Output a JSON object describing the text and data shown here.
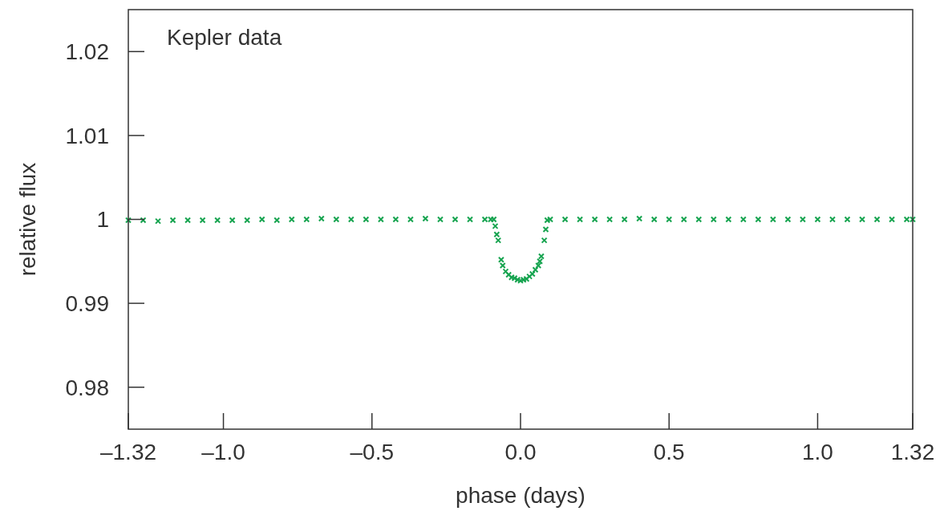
{
  "chart_data": {
    "type": "scatter",
    "xlabel": "phase (days)",
    "ylabel": "relative flux",
    "annotations": [
      "Kepler data"
    ],
    "xlim": [
      -1.32,
      1.32
    ],
    "ylim": [
      0.975,
      1.025
    ],
    "xticks": [
      {
        "value": -1.32,
        "label": "–1.32"
      },
      {
        "value": -1.0,
        "label": "–1.0"
      },
      {
        "value": -0.5,
        "label": "–0.5"
      },
      {
        "value": 0,
        "label": "0.0"
      },
      {
        "value": 0.5,
        "label": "0.5"
      },
      {
        "value": 1.0,
        "label": "1.0"
      },
      {
        "value": 1.32,
        "label": "1.32"
      }
    ],
    "yticks": [
      0.98,
      0.99,
      1,
      1.01,
      1.02
    ],
    "grid": false,
    "marker": "cross",
    "series": [
      {
        "color": "#17a450",
        "x": [
          -1.32,
          -1.27,
          -1.22,
          -1.17,
          -1.12,
          -1.07,
          -1.02,
          -0.97,
          -0.92,
          -0.87,
          -0.82,
          -0.77,
          -0.72,
          -0.67,
          -0.62,
          -0.57,
          -0.52,
          -0.47,
          -0.42,
          -0.37,
          -0.32,
          -0.27,
          -0.22,
          -0.17,
          -0.12,
          -0.1,
          -0.09,
          -0.085,
          -0.08,
          -0.075,
          -0.065,
          -0.06,
          -0.05,
          -0.04,
          -0.03,
          -0.02,
          -0.01,
          0,
          0.01,
          0.02,
          0.03,
          0.04,
          0.05,
          0.06,
          0.065,
          0.07,
          0.08,
          0.085,
          0.09,
          0.1,
          0.15,
          0.2,
          0.25,
          0.3,
          0.35,
          0.4,
          0.45,
          0.5,
          0.55,
          0.6,
          0.65,
          0.7,
          0.75,
          0.8,
          0.85,
          0.9,
          0.95,
          1.0,
          1.05,
          1.1,
          1.15,
          1.2,
          1.25,
          1.3,
          1.32
        ],
        "values": [
          0.9999,
          0.9999,
          0.9998,
          0.9999,
          0.9999,
          0.9999,
          0.9999,
          0.9999,
          0.9999,
          1.0,
          0.9999,
          1.0,
          1.0,
          1.0001,
          1.0,
          1.0,
          1.0,
          1.0,
          1.0,
          1.0,
          1.0001,
          1.0,
          1.0,
          1.0,
          1.0,
          1.0,
          1.0,
          0.9992,
          0.9982,
          0.9975,
          0.9952,
          0.9945,
          0.9938,
          0.9934,
          0.9931,
          0.993,
          0.9928,
          0.9927,
          0.9928,
          0.9929,
          0.9932,
          0.9935,
          0.994,
          0.9945,
          0.995,
          0.9956,
          0.9975,
          0.9988,
          0.9999,
          1.0,
          1.0,
          1.0,
          1.0,
          1.0,
          1.0,
          1.0001,
          1.0,
          1.0,
          1.0,
          1.0,
          1.0,
          1.0,
          1.0,
          1.0,
          1.0,
          1.0,
          1.0,
          1.0,
          1.0,
          1.0,
          1.0,
          1.0,
          1.0,
          1.0,
          1.0
        ]
      }
    ]
  }
}
